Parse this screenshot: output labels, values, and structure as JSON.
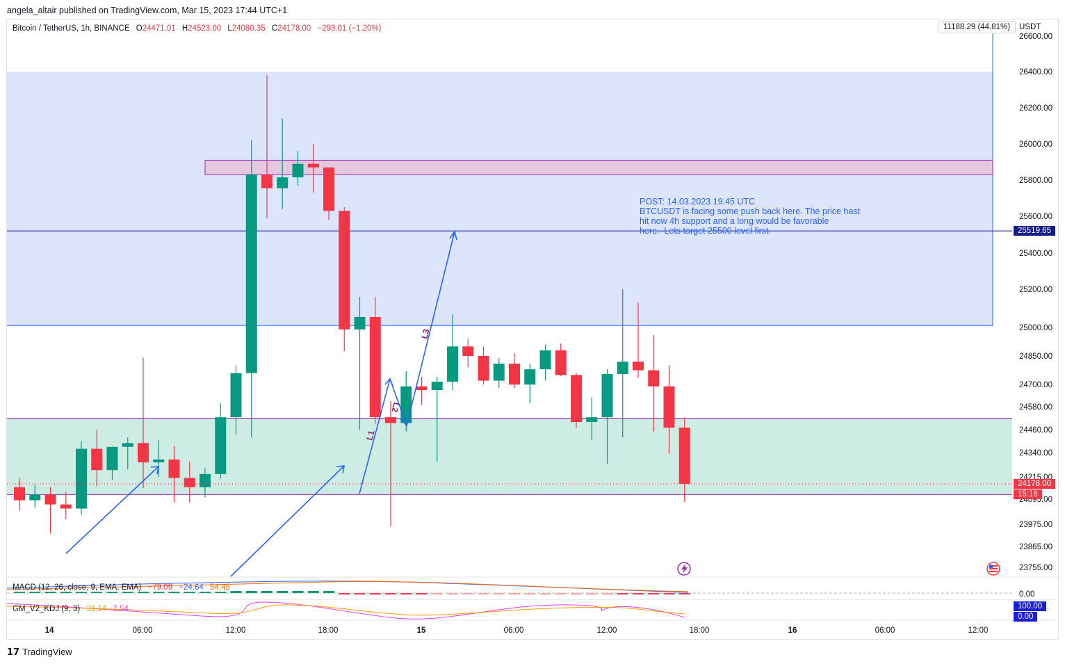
{
  "header": {
    "published_by": "angela_altair published on TradingView.com, Mar 15, 2023 17:44 UTC+1"
  },
  "legend": {
    "symbol": "Bitcoin / TetherUS, 1h, BINANCE",
    "open": "24471.01",
    "high": "24523.00",
    "low": "24080.35",
    "close": "24178.00",
    "change": "−293.01 (−1.20%)"
  },
  "macd": {
    "label": "MACD (12, 26, close, 9, EMA, EMA)",
    "v1": "−79.09",
    "v2": "−24.64",
    "v3": "54.45",
    "zero_label": "0.00"
  },
  "kdj": {
    "label": "GM_V2_KDJ (9, 3)",
    "v1": "31.14",
    "v2": "7.54",
    "top_label": "100.00",
    "bottom_label": "0.00"
  },
  "measure_label": "11188.29 (44.81%)",
  "axis_unit": "USDT",
  "price_tags": {
    "target": "25519.65",
    "last": "24178.00",
    "countdown": "15:16"
  },
  "annotation": {
    "text": "POST: 14.03.2023 19:45 UTC\nBTCUSDT is facing some push back here. The price hast\nhit now 4h support and a long would be favorable\nhere.  Lets target 25500 level first."
  },
  "wave_labels": [
    "L1",
    "L2",
    "L3"
  ],
  "brand": "TradingView",
  "colors": {
    "up": "#089981",
    "down": "#f23645",
    "blue_zone": "#dde5fc",
    "green_zone": "#cdece4",
    "resistance": "#e6c7e0",
    "arrow": "#2962ff",
    "label_purple": "#8e1f5c"
  },
  "chart_data": {
    "type": "candlestick",
    "x_tick_labels": [
      "14",
      "06:00",
      "12:00",
      "18:00",
      "15",
      "06:00",
      "12:00",
      "18:00",
      "16",
      "06:00",
      "12:00"
    ],
    "y_tick_labels": [
      "26600.00",
      "26400.00",
      "26200.00",
      "26000.00",
      "25800.00",
      "25600.00",
      "25400.00",
      "25200.00",
      "25000.00",
      "24850.00",
      "24700.00",
      "24580.00",
      "24460.00",
      "24340.00",
      "24215.00",
      "24095.00",
      "23975.00",
      "23865.00",
      "23755.00"
    ],
    "time_start": "2023-03-13 23:00",
    "interval": "1h",
    "candles": [
      {
        "t": "2023-03-13 23:00",
        "o": 24160,
        "h": 24210,
        "l": 24040,
        "c": 24090
      },
      {
        "t": "2023-03-14 00:00",
        "o": 24090,
        "h": 24175,
        "l": 24055,
        "c": 24120
      },
      {
        "t": "2023-03-14 01:00",
        "o": 24120,
        "h": 24160,
        "l": 23930,
        "c": 24070
      },
      {
        "t": "2023-03-14 02:00",
        "o": 24070,
        "h": 24135,
        "l": 24000,
        "c": 24050
      },
      {
        "t": "2023-03-14 03:00",
        "o": 24050,
        "h": 24400,
        "l": 24020,
        "c": 24360
      },
      {
        "t": "2023-03-14 04:00",
        "o": 24360,
        "h": 24460,
        "l": 24165,
        "c": 24250
      },
      {
        "t": "2023-03-14 05:00",
        "o": 24250,
        "h": 24370,
        "l": 24200,
        "c": 24370
      },
      {
        "t": "2023-03-14 06:00",
        "o": 24370,
        "h": 24420,
        "l": 24255,
        "c": 24390
      },
      {
        "t": "2023-03-14 07:00",
        "o": 24390,
        "h": 24840,
        "l": 24155,
        "c": 24290
      },
      {
        "t": "2023-03-14 08:00",
        "o": 24290,
        "h": 24405,
        "l": 24215,
        "c": 24305
      },
      {
        "t": "2023-03-14 09:00",
        "o": 24305,
        "h": 24375,
        "l": 24080,
        "c": 24210
      },
      {
        "t": "2023-03-14 10:00",
        "o": 24210,
        "h": 24295,
        "l": 24080,
        "c": 24160
      },
      {
        "t": "2023-03-14 11:00",
        "o": 24160,
        "h": 24260,
        "l": 24105,
        "c": 24230
      },
      {
        "t": "2023-03-14 12:00",
        "o": 24230,
        "h": 24600,
        "l": 24205,
        "c": 24525
      },
      {
        "t": "2023-03-14 13:00",
        "o": 24525,
        "h": 24800,
        "l": 24435,
        "c": 24760
      },
      {
        "t": "2023-03-14 14:00",
        "o": 24760,
        "h": 26020,
        "l": 24420,
        "c": 25830
      },
      {
        "t": "2023-03-14 15:00",
        "o": 25830,
        "h": 26380,
        "l": 25590,
        "c": 25755
      },
      {
        "t": "2023-03-14 16:00",
        "o": 25755,
        "h": 26140,
        "l": 25640,
        "c": 25815
      },
      {
        "t": "2023-03-14 17:00",
        "o": 25815,
        "h": 25960,
        "l": 25770,
        "c": 25890
      },
      {
        "t": "2023-03-14 18:00",
        "o": 25890,
        "h": 26000,
        "l": 25730,
        "c": 25870
      },
      {
        "t": "2023-03-14 19:00",
        "o": 25870,
        "h": 25870,
        "l": 25580,
        "c": 25630
      },
      {
        "t": "2023-03-14 20:00",
        "o": 25630,
        "h": 25650,
        "l": 24875,
        "c": 24990
      },
      {
        "t": "2023-03-14 21:00",
        "o": 24990,
        "h": 25160,
        "l": 24460,
        "c": 25055
      },
      {
        "t": "2023-03-14 22:00",
        "o": 25055,
        "h": 25160,
        "l": 24490,
        "c": 24525
      },
      {
        "t": "2023-03-14 23:00",
        "o": 24525,
        "h": 24610,
        "l": 23965,
        "c": 24495
      },
      {
        "t": "2023-03-15 00:00",
        "o": 24495,
        "h": 24770,
        "l": 24450,
        "c": 24690
      },
      {
        "t": "2023-03-15 01:00",
        "o": 24690,
        "h": 24740,
        "l": 24590,
        "c": 24670
      },
      {
        "t": "2023-03-15 02:00",
        "o": 24670,
        "h": 24740,
        "l": 24295,
        "c": 24715
      },
      {
        "t": "2023-03-15 03:00",
        "o": 24715,
        "h": 25070,
        "l": 24670,
        "c": 24900
      },
      {
        "t": "2023-03-15 04:00",
        "o": 24900,
        "h": 24940,
        "l": 24790,
        "c": 24850
      },
      {
        "t": "2023-03-15 05:00",
        "o": 24850,
        "h": 24900,
        "l": 24700,
        "c": 24720
      },
      {
        "t": "2023-03-15 06:00",
        "o": 24720,
        "h": 24840,
        "l": 24680,
        "c": 24810
      },
      {
        "t": "2023-03-15 07:00",
        "o": 24810,
        "h": 24865,
        "l": 24680,
        "c": 24700
      },
      {
        "t": "2023-03-15 08:00",
        "o": 24700,
        "h": 24810,
        "l": 24600,
        "c": 24780
      },
      {
        "t": "2023-03-15 09:00",
        "o": 24780,
        "h": 24910,
        "l": 24720,
        "c": 24880
      },
      {
        "t": "2023-03-15 10:00",
        "o": 24880,
        "h": 24915,
        "l": 24745,
        "c": 24750
      },
      {
        "t": "2023-03-15 11:00",
        "o": 24750,
        "h": 24760,
        "l": 24470,
        "c": 24500
      },
      {
        "t": "2023-03-15 12:00",
        "o": 24500,
        "h": 24630,
        "l": 24405,
        "c": 24525
      },
      {
        "t": "2023-03-15 13:00",
        "o": 24525,
        "h": 24780,
        "l": 24280,
        "c": 24755
      },
      {
        "t": "2023-03-15 14:00",
        "o": 24755,
        "h": 25200,
        "l": 24420,
        "c": 24820
      },
      {
        "t": "2023-03-15 15:00",
        "o": 24820,
        "h": 25130,
        "l": 24735,
        "c": 24775
      },
      {
        "t": "2023-03-15 16:00",
        "o": 24775,
        "h": 24960,
        "l": 24450,
        "c": 24690
      },
      {
        "t": "2023-03-15 17:00",
        "o": 24690,
        "h": 24800,
        "l": 24335,
        "c": 24471
      },
      {
        "t": "2023-03-15 18:00",
        "o": 24471.01,
        "h": 24523,
        "l": 24080.35,
        "c": 24178
      }
    ],
    "zones": [
      {
        "name": "blue_measure",
        "from": 25010,
        "to": 26800
      },
      {
        "name": "resistance",
        "from": 25830,
        "to": 25910
      },
      {
        "name": "support",
        "from": 24120,
        "to": 24520
      }
    ],
    "horizontal_lines": [
      25519.65
    ],
    "macd_series_note": "histogram small around zero",
    "kdj_range": [
      0,
      100
    ]
  }
}
